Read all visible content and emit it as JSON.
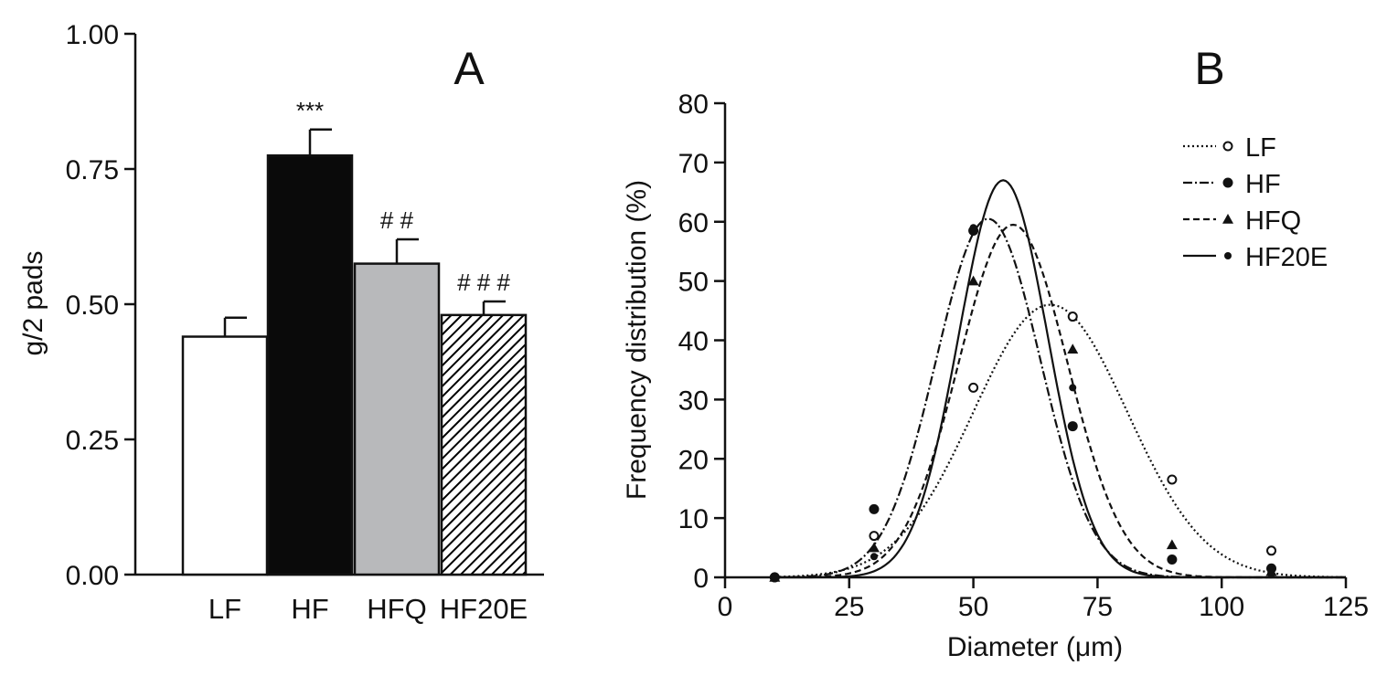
{
  "chart_data": [
    {
      "panel": "A",
      "type": "bar",
      "panel_label": "A",
      "ylabel": "g/2 pads",
      "xlabel": "",
      "ylim": [
        0,
        1.0
      ],
      "y_ticks": [
        "0.00",
        "0.25",
        "0.50",
        "0.75",
        "1.00"
      ],
      "y_tick_values": [
        0,
        0.25,
        0.5,
        0.75,
        1.0
      ],
      "categories": [
        "LF",
        "HF",
        "HFQ",
        "HF20E"
      ],
      "values": [
        0.44,
        0.775,
        0.575,
        0.48
      ],
      "errors": [
        0.035,
        0.048,
        0.045,
        0.025
      ],
      "fills": [
        "white",
        "black",
        "gray",
        "hatched"
      ],
      "annotations": [
        "",
        "***",
        "# #",
        "# # #"
      ],
      "colors": {
        "white": "#ffffff",
        "black": "#0a0a0a",
        "gray": "#b8b9bb",
        "hatch": "#000000"
      }
    },
    {
      "panel": "B",
      "type": "line",
      "panel_label": "B",
      "xlabel": "Diameter (μm)",
      "ylabel": "Frequency distribution (%)",
      "xlim": [
        0,
        125
      ],
      "ylim": [
        0,
        80
      ],
      "x_ticks": [
        "0",
        "25",
        "50",
        "75",
        "100",
        "125"
      ],
      "x_tick_values": [
        0,
        25,
        50,
        75,
        100,
        125
      ],
      "y_ticks": [
        "0",
        "10",
        "20",
        "30",
        "40",
        "50",
        "60",
        "70",
        "80"
      ],
      "y_tick_values": [
        0,
        10,
        20,
        30,
        40,
        50,
        60,
        70,
        80
      ],
      "legend_position": "top-right",
      "series": [
        {
          "name": "LF",
          "marker": "open-circle",
          "dash": "2,3",
          "curve": {
            "amplitude": 46,
            "mean": 65.5,
            "sigma": 15.5
          },
          "points": [
            {
              "x": 10,
              "y": 0
            },
            {
              "x": 30,
              "y": 7
            },
            {
              "x": 50,
              "y": 32
            },
            {
              "x": 70,
              "y": 44
            },
            {
              "x": 90,
              "y": 16.5
            },
            {
              "x": 110,
              "y": 4.5
            }
          ]
        },
        {
          "name": "HF",
          "marker": "filled-circle",
          "dash": "10,3,2,3",
          "curve": {
            "amplitude": 60.5,
            "mean": 53,
            "sigma": 10.5
          },
          "points": [
            {
              "x": 10,
              "y": 0
            },
            {
              "x": 30,
              "y": 11.5
            },
            {
              "x": 50,
              "y": 58.5
            },
            {
              "x": 70,
              "y": 25.5
            },
            {
              "x": 90,
              "y": 3
            },
            {
              "x": 110,
              "y": 1.5
            }
          ]
        },
        {
          "name": "HFQ",
          "marker": "filled-triangle",
          "dash": "7,4",
          "curve": {
            "amplitude": 59.5,
            "mean": 58,
            "sigma": 11
          },
          "points": [
            {
              "x": 10,
              "y": 0
            },
            {
              "x": 30,
              "y": 5
            },
            {
              "x": 50,
              "y": 50
            },
            {
              "x": 70,
              "y": 38.5
            },
            {
              "x": 90,
              "y": 5.5
            },
            {
              "x": 110,
              "y": 1
            }
          ]
        },
        {
          "name": "HF20E",
          "marker": "small-filled-circle",
          "dash": "",
          "curve": {
            "amplitude": 67,
            "mean": 56,
            "sigma": 9
          },
          "points": [
            {
              "x": 10,
              "y": 0
            },
            {
              "x": 30,
              "y": 3.5
            },
            {
              "x": 50,
              "y": 59
            },
            {
              "x": 70,
              "y": 32
            },
            {
              "x": 90,
              "y": 3
            },
            {
              "x": 110,
              "y": 0.5
            }
          ]
        }
      ]
    }
  ]
}
